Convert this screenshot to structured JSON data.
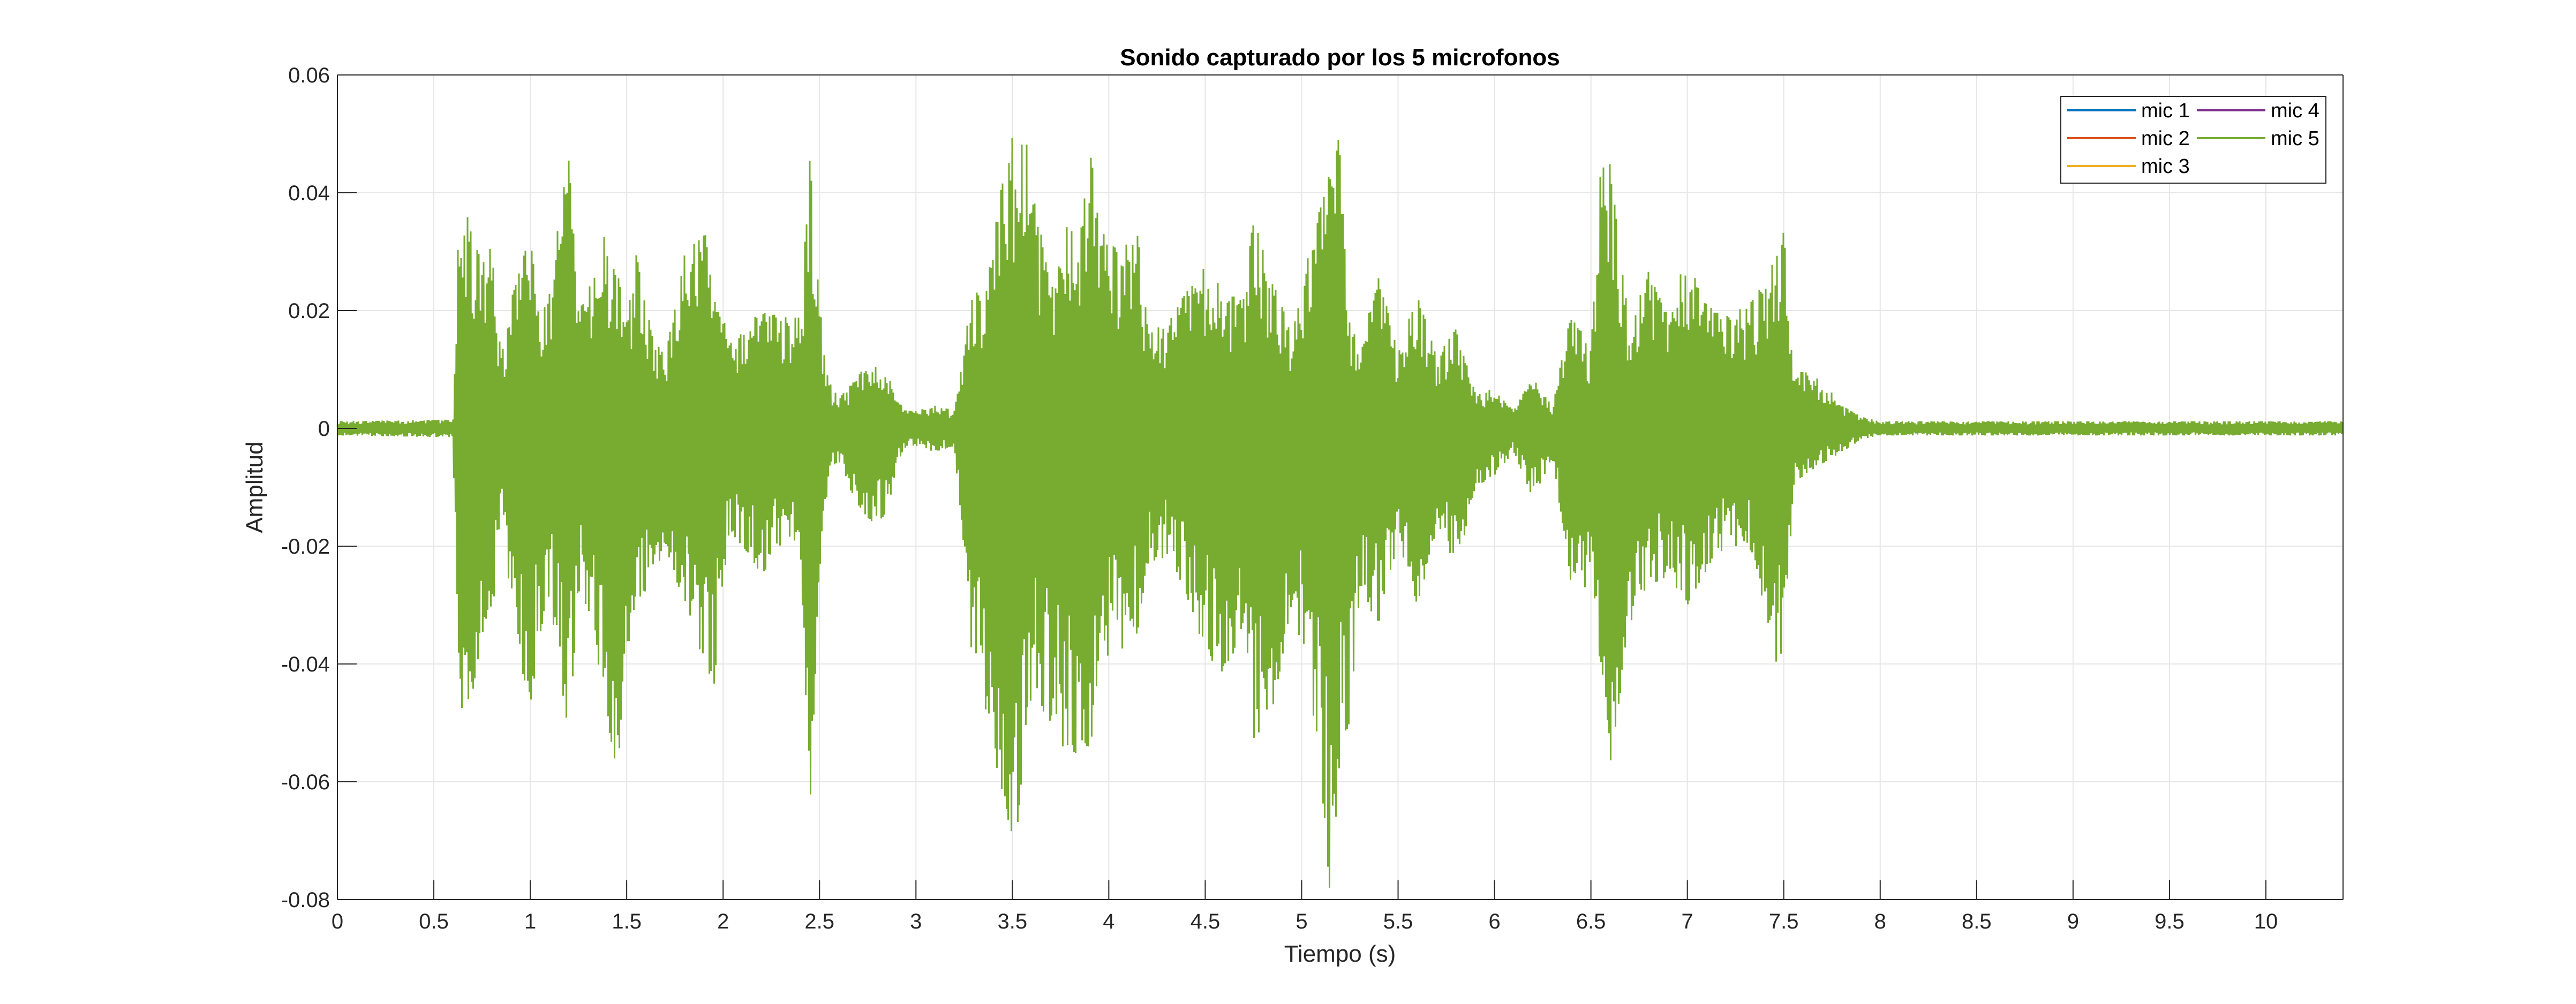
{
  "chart_data": {
    "type": "line",
    "title": "Sonido capturado por los 5 microfonos",
    "xlabel": "Tiempo (s)",
    "ylabel": "Amplitud",
    "xlim": [
      0,
      10.4
    ],
    "ylim": [
      -0.08,
      0.06
    ],
    "x_ticks": [
      0,
      0.5,
      1,
      1.5,
      2,
      2.5,
      3,
      3.5,
      4,
      4.5,
      5,
      5.5,
      6,
      6.5,
      7,
      7.5,
      8,
      8.5,
      9,
      9.5,
      10
    ],
    "x_tick_labels": [
      "0",
      "0.5",
      "1",
      "1.5",
      "2",
      "2.5",
      "3",
      "3.5",
      "4",
      "4.5",
      "5",
      "5.5",
      "6",
      "6.5",
      "7",
      "7.5",
      "8",
      "8.5",
      "9",
      "9.5",
      "10"
    ],
    "y_ticks": [
      -0.08,
      -0.06,
      -0.04,
      -0.02,
      0,
      0.02,
      0.04,
      0.06
    ],
    "y_tick_labels": [
      "-0.08",
      "-0.06",
      "-0.04",
      "-0.02",
      "0",
      "0.02",
      "0.04",
      "0.06"
    ],
    "grid": true,
    "legend_position": "top-right",
    "series": [
      {
        "name": "mic 1",
        "color": "#0072BD"
      },
      {
        "name": "mic 2",
        "color": "#D95319"
      },
      {
        "name": "mic 3",
        "color": "#EDB120"
      },
      {
        "name": "mic 4",
        "color": "#7E2F8E"
      },
      {
        "name": "mic 5",
        "color": "#77AC30"
      }
    ],
    "envelope": {
      "x": [
        0,
        0.6,
        0.62,
        0.65,
        0.7,
        0.75,
        0.8,
        0.85,
        0.92,
        1.0,
        1.05,
        1.1,
        1.15,
        1.2,
        1.25,
        1.3,
        1.38,
        1.45,
        1.5,
        1.55,
        1.6,
        1.65,
        1.7,
        1.8,
        1.9,
        1.95,
        2.0,
        2.05,
        2.1,
        2.2,
        2.3,
        2.4,
        2.45,
        2.5,
        2.55,
        2.6,
        2.65,
        2.75,
        2.85,
        2.9,
        2.95,
        3.0,
        3.1,
        3.2,
        3.3,
        3.35,
        3.45,
        3.5,
        3.55,
        3.6,
        3.7,
        3.8,
        3.85,
        3.9,
        3.95,
        4.05,
        4.15,
        4.2,
        4.3,
        4.4,
        4.5,
        4.6,
        4.7,
        4.75,
        4.85,
        4.95,
        5.0,
        5.05,
        5.15,
        5.2,
        5.25,
        5.3,
        5.4,
        5.5,
        5.6,
        5.7,
        5.8,
        5.9,
        6.0,
        6.1,
        6.2,
        6.3,
        6.4,
        6.5,
        6.55,
        6.6,
        6.7,
        6.8,
        6.9,
        7.0,
        7.1,
        7.2,
        7.3,
        7.35,
        7.45,
        7.5,
        7.55,
        7.6,
        7.7,
        7.8,
        7.9,
        8.0,
        10.4
      ],
      "upper": [
        0.0012,
        0.0015,
        0.03,
        0.04,
        0.033,
        0.028,
        0.031,
        0.012,
        0.025,
        0.033,
        0.02,
        0.025,
        0.038,
        0.046,
        0.02,
        0.024,
        0.033,
        0.027,
        0.018,
        0.03,
        0.02,
        0.015,
        0.012,
        0.03,
        0.035,
        0.022,
        0.019,
        0.016,
        0.018,
        0.02,
        0.019,
        0.019,
        0.046,
        0.021,
        0.008,
        0.005,
        0.007,
        0.011,
        0.01,
        0.005,
        0.003,
        0.003,
        0.004,
        0.003,
        0.025,
        0.02,
        0.043,
        0.05,
        0.053,
        0.043,
        0.023,
        0.037,
        0.033,
        0.049,
        0.034,
        0.03,
        0.033,
        0.018,
        0.018,
        0.023,
        0.028,
        0.023,
        0.022,
        0.036,
        0.025,
        0.016,
        0.024,
        0.032,
        0.044,
        0.053,
        0.02,
        0.014,
        0.026,
        0.013,
        0.023,
        0.012,
        0.017,
        0.006,
        0.007,
        0.003,
        0.009,
        0.004,
        0.02,
        0.013,
        0.044,
        0.045,
        0.017,
        0.027,
        0.019,
        0.031,
        0.021,
        0.019,
        0.021,
        0.022,
        0.029,
        0.034,
        0.008,
        0.01,
        0.008,
        0.004,
        0.002,
        0.0012,
        0.0012
      ],
      "lower": [
        -0.0012,
        -0.0015,
        -0.04,
        -0.05,
        -0.045,
        -0.035,
        -0.034,
        -0.015,
        -0.035,
        -0.048,
        -0.035,
        -0.028,
        -0.042,
        -0.052,
        -0.028,
        -0.031,
        -0.045,
        -0.06,
        -0.038,
        -0.035,
        -0.03,
        -0.025,
        -0.02,
        -0.03,
        -0.04,
        -0.045,
        -0.025,
        -0.018,
        -0.02,
        -0.025,
        -0.02,
        -0.02,
        -0.065,
        -0.025,
        -0.008,
        -0.006,
        -0.01,
        -0.016,
        -0.015,
        -0.006,
        -0.003,
        -0.003,
        -0.004,
        -0.003,
        -0.043,
        -0.048,
        -0.062,
        -0.072,
        -0.063,
        -0.045,
        -0.05,
        -0.058,
        -0.053,
        -0.056,
        -0.04,
        -0.038,
        -0.035,
        -0.023,
        -0.022,
        -0.028,
        -0.038,
        -0.042,
        -0.034,
        -0.058,
        -0.048,
        -0.03,
        -0.038,
        -0.045,
        -0.08,
        -0.055,
        -0.05,
        -0.028,
        -0.033,
        -0.02,
        -0.03,
        -0.018,
        -0.025,
        -0.01,
        -0.008,
        -0.004,
        -0.012,
        -0.005,
        -0.027,
        -0.028,
        -0.043,
        -0.057,
        -0.034,
        -0.027,
        -0.025,
        -0.03,
        -0.024,
        -0.02,
        -0.02,
        -0.022,
        -0.04,
        -0.042,
        -0.01,
        -0.008,
        -0.006,
        -0.004,
        -0.002,
        -0.0012,
        -0.0012
      ]
    }
  }
}
